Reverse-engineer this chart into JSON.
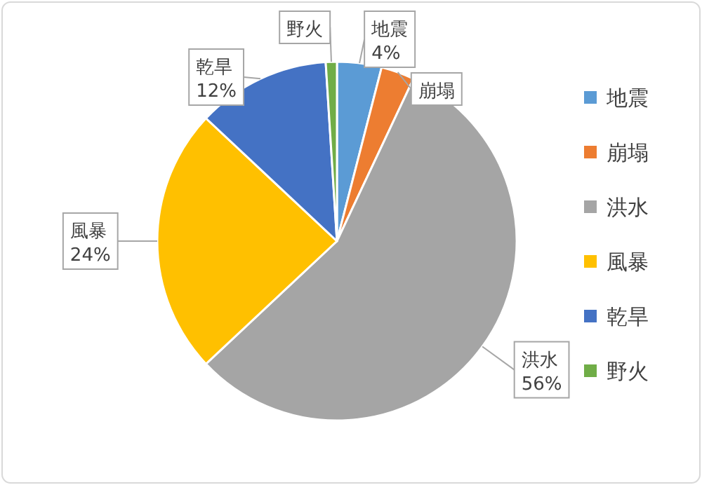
{
  "chart_data": {
    "type": "pie",
    "categories": [
      "地震",
      "崩塌",
      "洪水",
      "風暴",
      "乾旱",
      "野火"
    ],
    "values": [
      4,
      3,
      56,
      24,
      12,
      1
    ],
    "colors": [
      "#5b9bd5",
      "#ed7d31",
      "#a5a5a5",
      "#ffc000",
      "#4472c4",
      "#70ad47"
    ],
    "value_labels": [
      "4%",
      null,
      "56%",
      "24%",
      "12%",
      null
    ],
    "legend": "right"
  }
}
